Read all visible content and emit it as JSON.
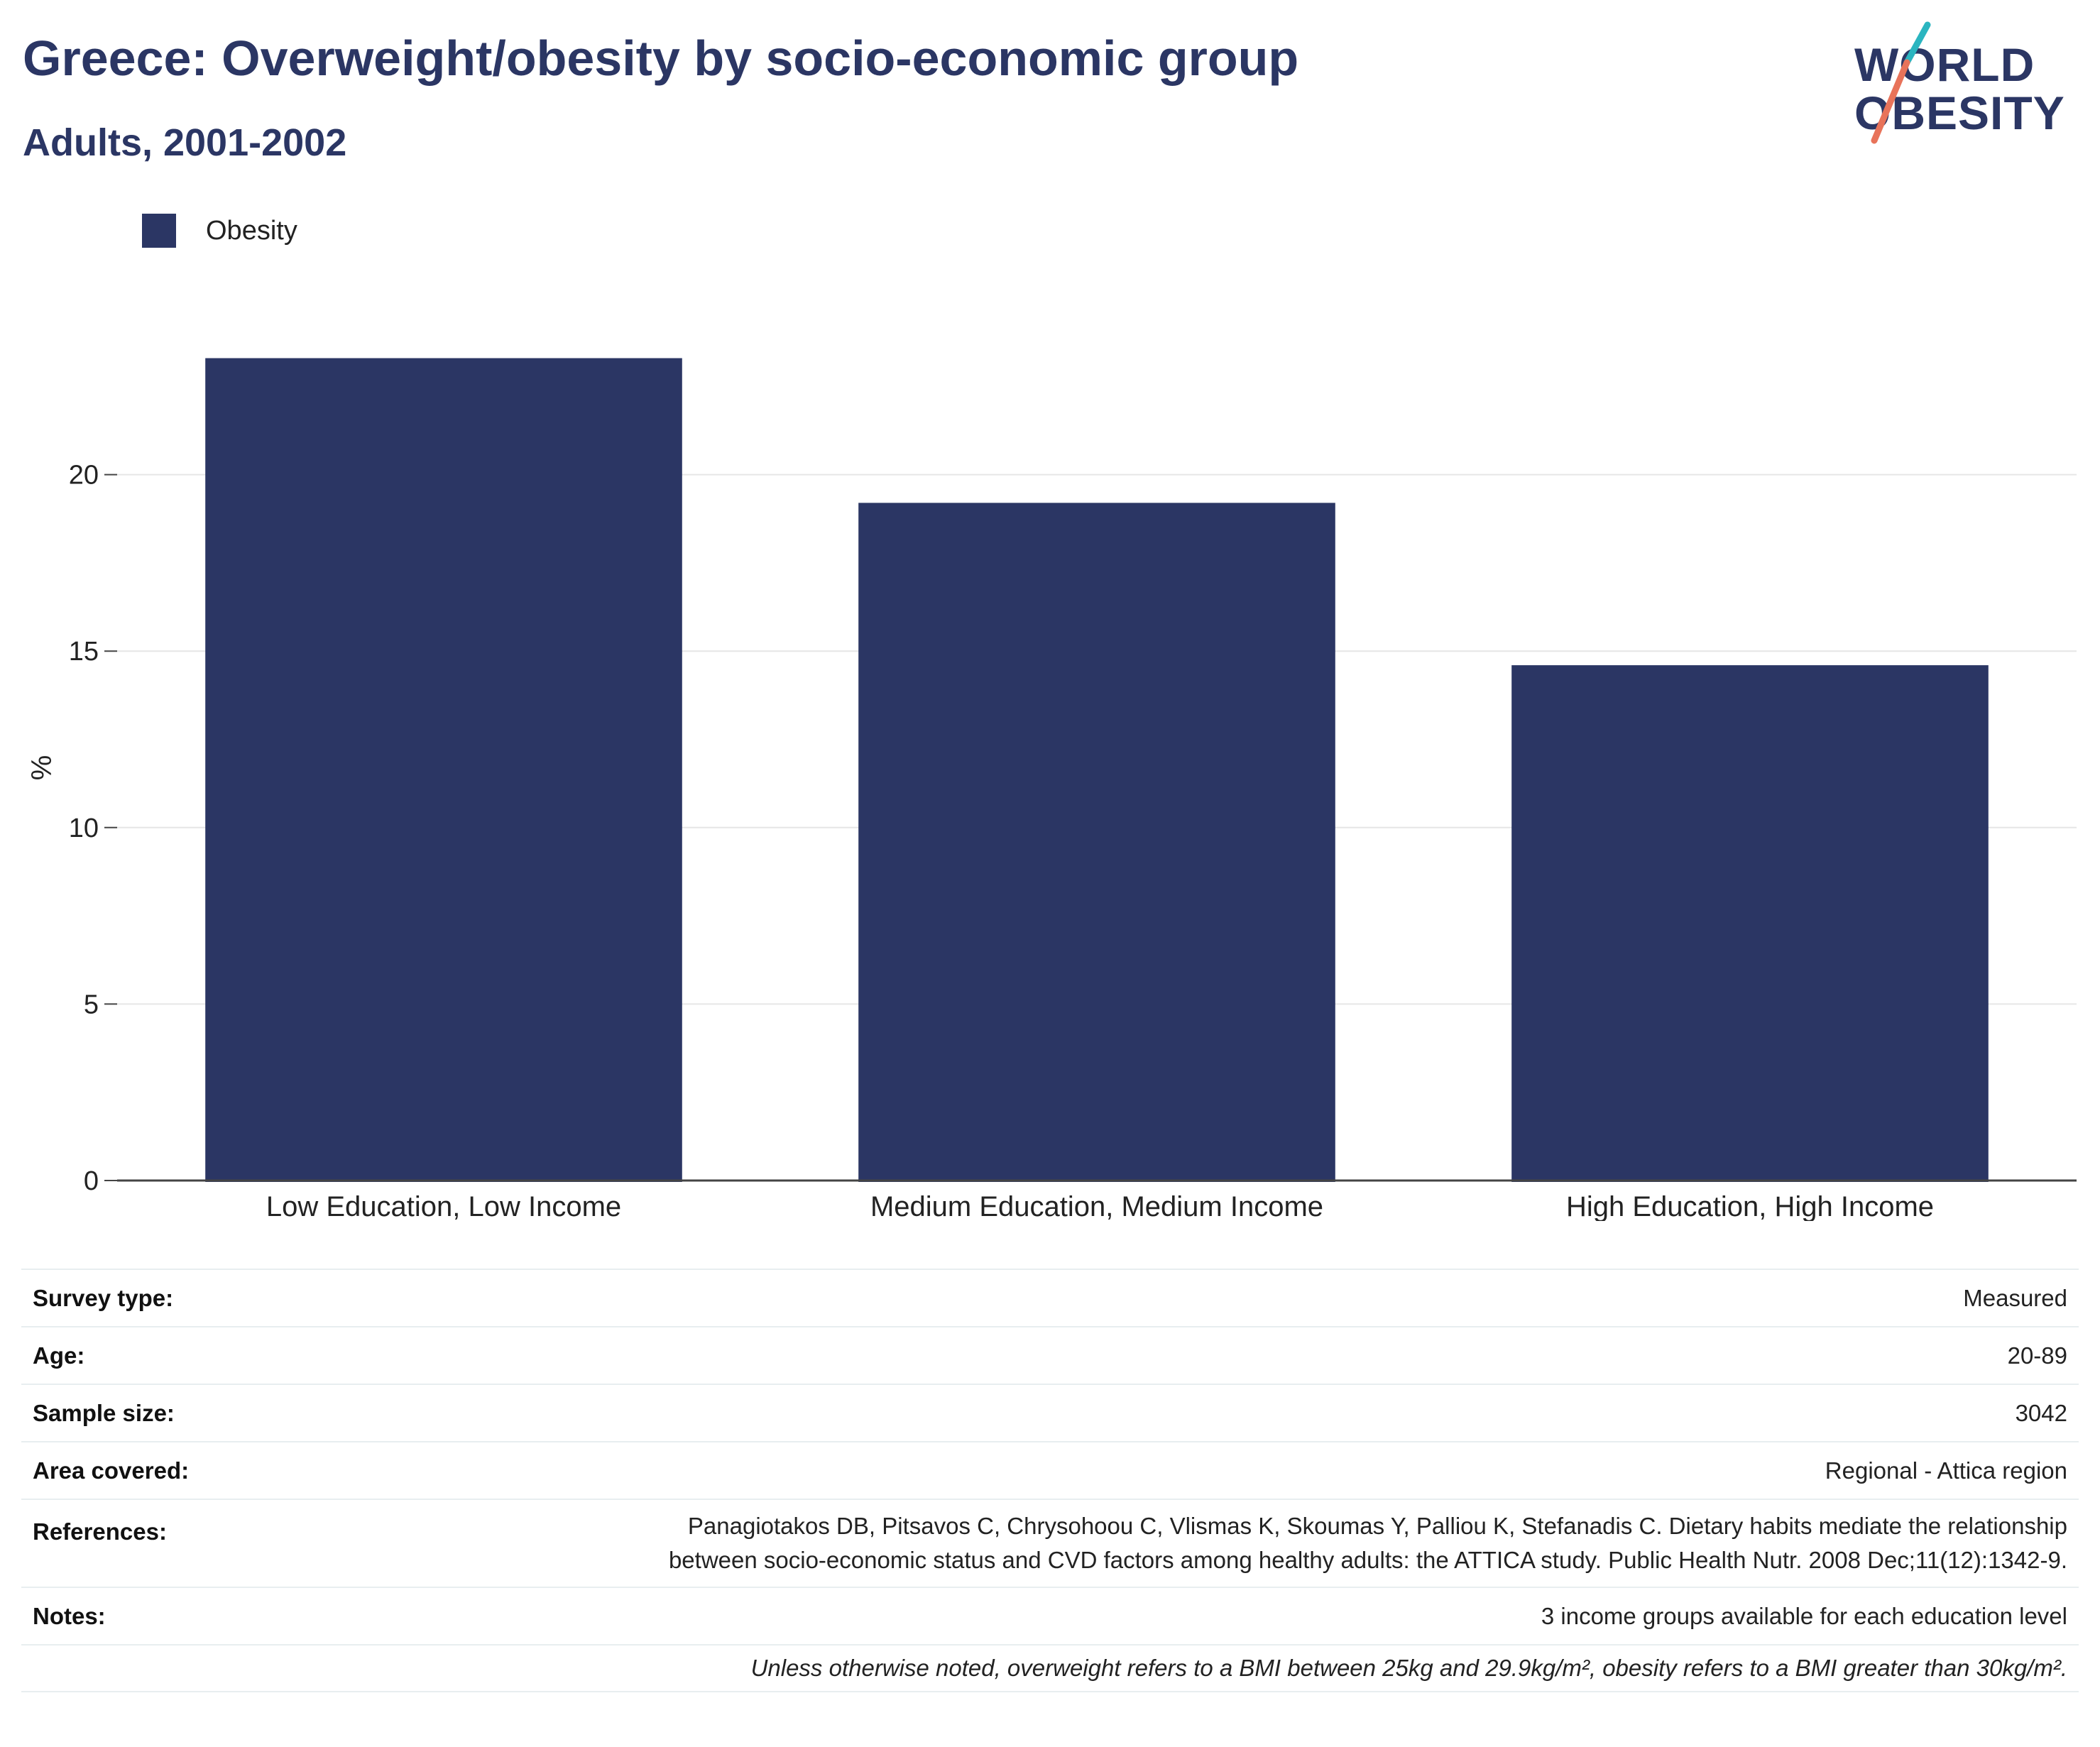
{
  "header": {
    "title": "Greece: Overweight/obesity by socio-economic group",
    "subtitle": "Adults, 2001-2002"
  },
  "logo": {
    "line1": "WORLD",
    "line2": "OBESITY"
  },
  "colors": {
    "bar": "#2b3664",
    "grid": "#e6e6e6",
    "axis": "#444444",
    "title": "#2b3664",
    "logo_teal": "#2bb5c0",
    "logo_coral": "#e8735a"
  },
  "chart_data": {
    "type": "bar",
    "categories": [
      "Low Education, Low Income",
      "Medium Education, Medium Income",
      "High Education, High Income"
    ],
    "series": [
      {
        "name": "Obesity",
        "values": [
          23.3,
          19.2,
          14.6
        ]
      }
    ],
    "xlabel": "",
    "ylabel": "%",
    "ylim": [
      0,
      25
    ],
    "yticks": [
      0,
      5,
      10,
      15,
      20
    ],
    "grid": true,
    "legend": "top-left"
  },
  "meta": {
    "rows": [
      {
        "label": "Survey type:",
        "value": "Measured"
      },
      {
        "label": "Age:",
        "value": "20-89"
      },
      {
        "label": "Sample size:",
        "value": "3042"
      },
      {
        "label": "Area covered:",
        "value": "Regional - Attica region"
      },
      {
        "label": "References:",
        "value_line1": "Panagiotakos DB, Pitsavos C, Chrysohoou C, Vlismas K, Skoumas Y, Palliou K, Stefanadis C. Dietary habits mediate the relationship",
        "value_line2": "between socio-economic status and CVD factors among healthy adults: the ATTICA study. Public Health Nutr. 2008 Dec;11(12):1342-9."
      },
      {
        "label": "Notes:",
        "value": "3 income groups available for each education level"
      }
    ],
    "footnote": "Unless otherwise noted, overweight refers to a BMI between 25kg and 29.9kg/m², obesity refers to a BMI greater than 30kg/m²."
  }
}
